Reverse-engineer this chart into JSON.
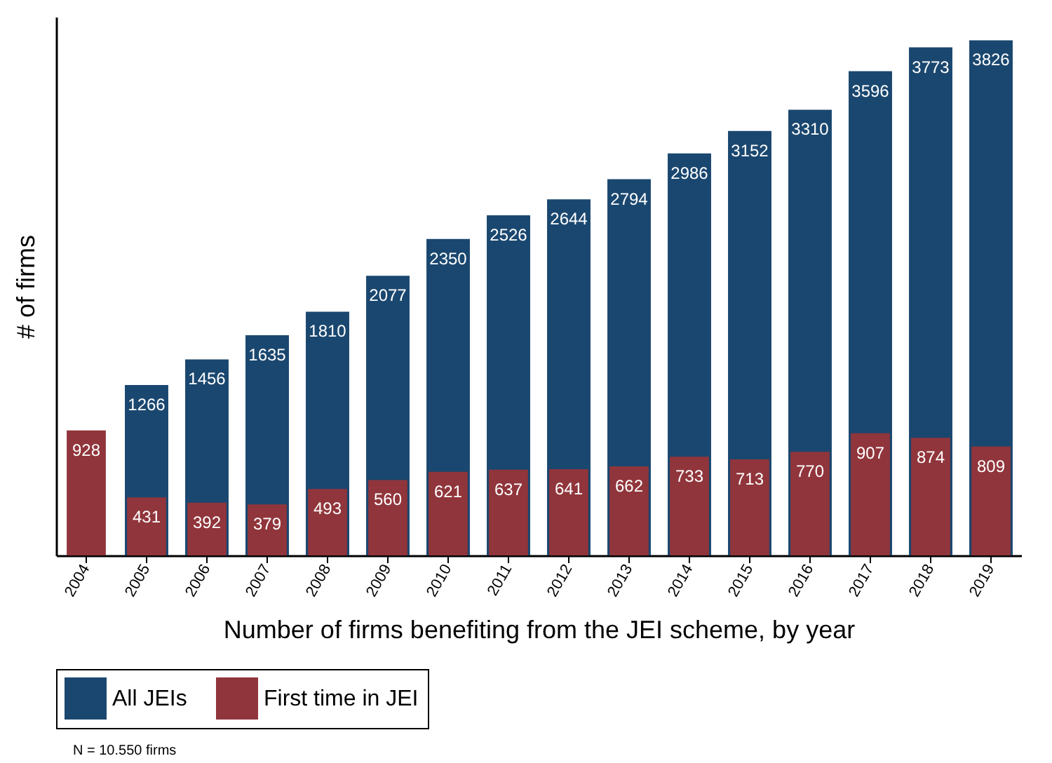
{
  "chart_data": {
    "type": "bar",
    "xlabel": "Number of firms benefiting from the JEI scheme, by year",
    "ylabel": "# of firms",
    "categories": [
      "2004",
      "2005",
      "2006",
      "2007",
      "2008",
      "2009",
      "2010",
      "2011",
      "2012",
      "2013",
      "2014",
      "2015",
      "2016",
      "2017",
      "2018",
      "2019"
    ],
    "series": [
      {
        "name": "All JEIs",
        "color": "#1a476f",
        "values": [
          null,
          1266,
          1456,
          1635,
          1810,
          2077,
          2350,
          2526,
          2644,
          2794,
          2986,
          3152,
          3310,
          3596,
          3773,
          3826
        ]
      },
      {
        "name": "First time in JEI",
        "color": "#90353b",
        "values": [
          928,
          431,
          392,
          379,
          493,
          560,
          621,
          637,
          641,
          662,
          733,
          713,
          770,
          907,
          874,
          809
        ]
      }
    ],
    "data_labels": true,
    "grid": false,
    "legend": "bottom",
    "tick_labels": "x",
    "annotations": [
      "N = 10.550 firms"
    ]
  }
}
